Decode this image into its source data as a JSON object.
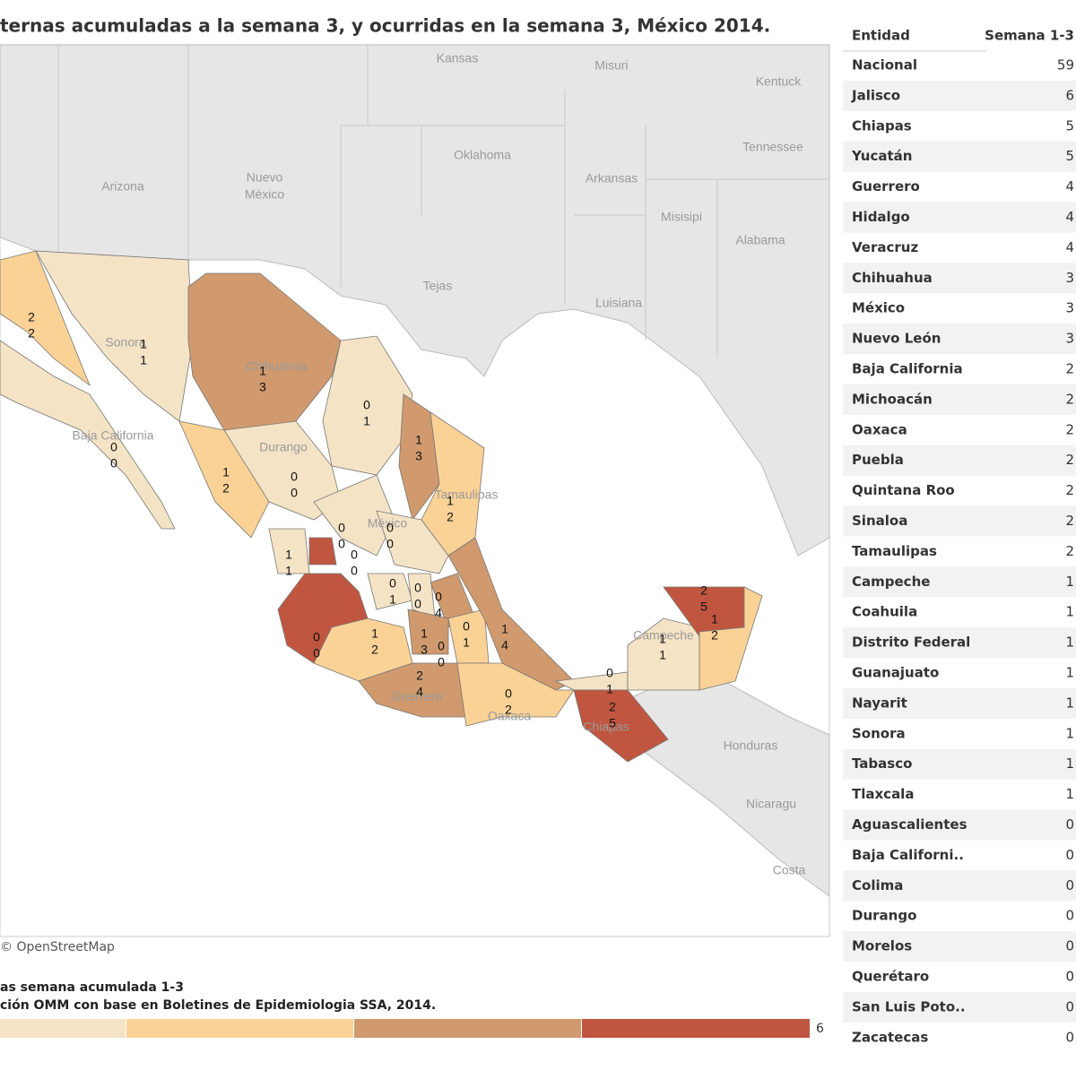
{
  "title": "ternas acumuladas a la semana 3, y ocurridas en la semana 3, México 2014.",
  "map": {
    "places": [
      "Kansas",
      "Misuri",
      "Kentuck",
      "Oklahoma",
      "Tennessee",
      "Arizona",
      "Nuevo",
      "México",
      "Arkansas",
      "Misisipi",
      "Alabama",
      "Tejas",
      "Luisiana",
      "Honduras",
      "Nicaragu",
      "Costa",
      "Sonora",
      "Chihuahua",
      "Baja California",
      "Durango",
      "Tamaulipas",
      "México",
      "Oaxaca",
      "Guerrero",
      "Chiapas",
      "Campeche"
    ],
    "labels": [
      [
        2,
        2
      ],
      [
        1,
        1
      ],
      [
        1,
        3
      ],
      [
        0,
        1
      ],
      [
        0,
        0
      ],
      [
        1,
        3
      ],
      [
        1,
        2
      ],
      [
        0,
        0
      ],
      [
        1,
        2
      ],
      [
        0,
        0
      ],
      [
        0,
        0
      ],
      [
        0,
        0
      ],
      [
        1,
        1
      ],
      [
        0,
        0
      ],
      [
        0,
        1
      ],
      [
        0,
        0
      ],
      [
        0,
        4
      ],
      [
        1,
        2
      ],
      [
        1,
        3
      ],
      [
        0,
        0
      ],
      [
        0,
        1
      ],
      [
        1,
        4
      ],
      [
        2,
        4
      ],
      [
        0,
        2
      ],
      [
        0,
        1
      ],
      [
        2,
        5
      ],
      [
        1,
        1
      ],
      [
        2,
        5
      ],
      [
        1,
        2
      ]
    ],
    "attribution": "© OpenStreetMap"
  },
  "legend": {
    "title": "as semana acumulada 1-3",
    "source": "ción OMM con base en Boletines de Epidemiologia SSA, 2014.",
    "max": 6
  },
  "table": {
    "header": [
      "Entidad",
      "Semana 1-3"
    ],
    "rows": [
      [
        "Nacional",
        59
      ],
      [
        "Jalisco",
        6
      ],
      [
        "Chiapas",
        5
      ],
      [
        "Yucatán",
        5
      ],
      [
        "Guerrero",
        4
      ],
      [
        "Hidalgo",
        4
      ],
      [
        "Veracruz",
        4
      ],
      [
        "Chihuahua",
        3
      ],
      [
        "México",
        3
      ],
      [
        "Nuevo León",
        3
      ],
      [
        "Baja California",
        2
      ],
      [
        "Michoacán",
        2
      ],
      [
        "Oaxaca",
        2
      ],
      [
        "Puebla",
        2
      ],
      [
        "Quintana Roo",
        2
      ],
      [
        "Sinaloa",
        2
      ],
      [
        "Tamaulipas",
        2
      ],
      [
        "Campeche",
        1
      ],
      [
        "Coahuila",
        1
      ],
      [
        "Distrito Federal",
        1
      ],
      [
        "Guanajuato",
        1
      ],
      [
        "Nayarit",
        1
      ],
      [
        "Sonora",
        1
      ],
      [
        "Tabasco",
        1
      ],
      [
        "Tlaxcala",
        1
      ],
      [
        "Aguascalientes",
        0
      ],
      [
        "Baja Californi..",
        0
      ],
      [
        "Colima",
        0
      ],
      [
        "Durango",
        0
      ],
      [
        "Morelos",
        0
      ],
      [
        "Querétaro",
        0
      ],
      [
        "San Luis Poto..",
        0
      ],
      [
        "Zacatecas",
        0
      ]
    ]
  }
}
